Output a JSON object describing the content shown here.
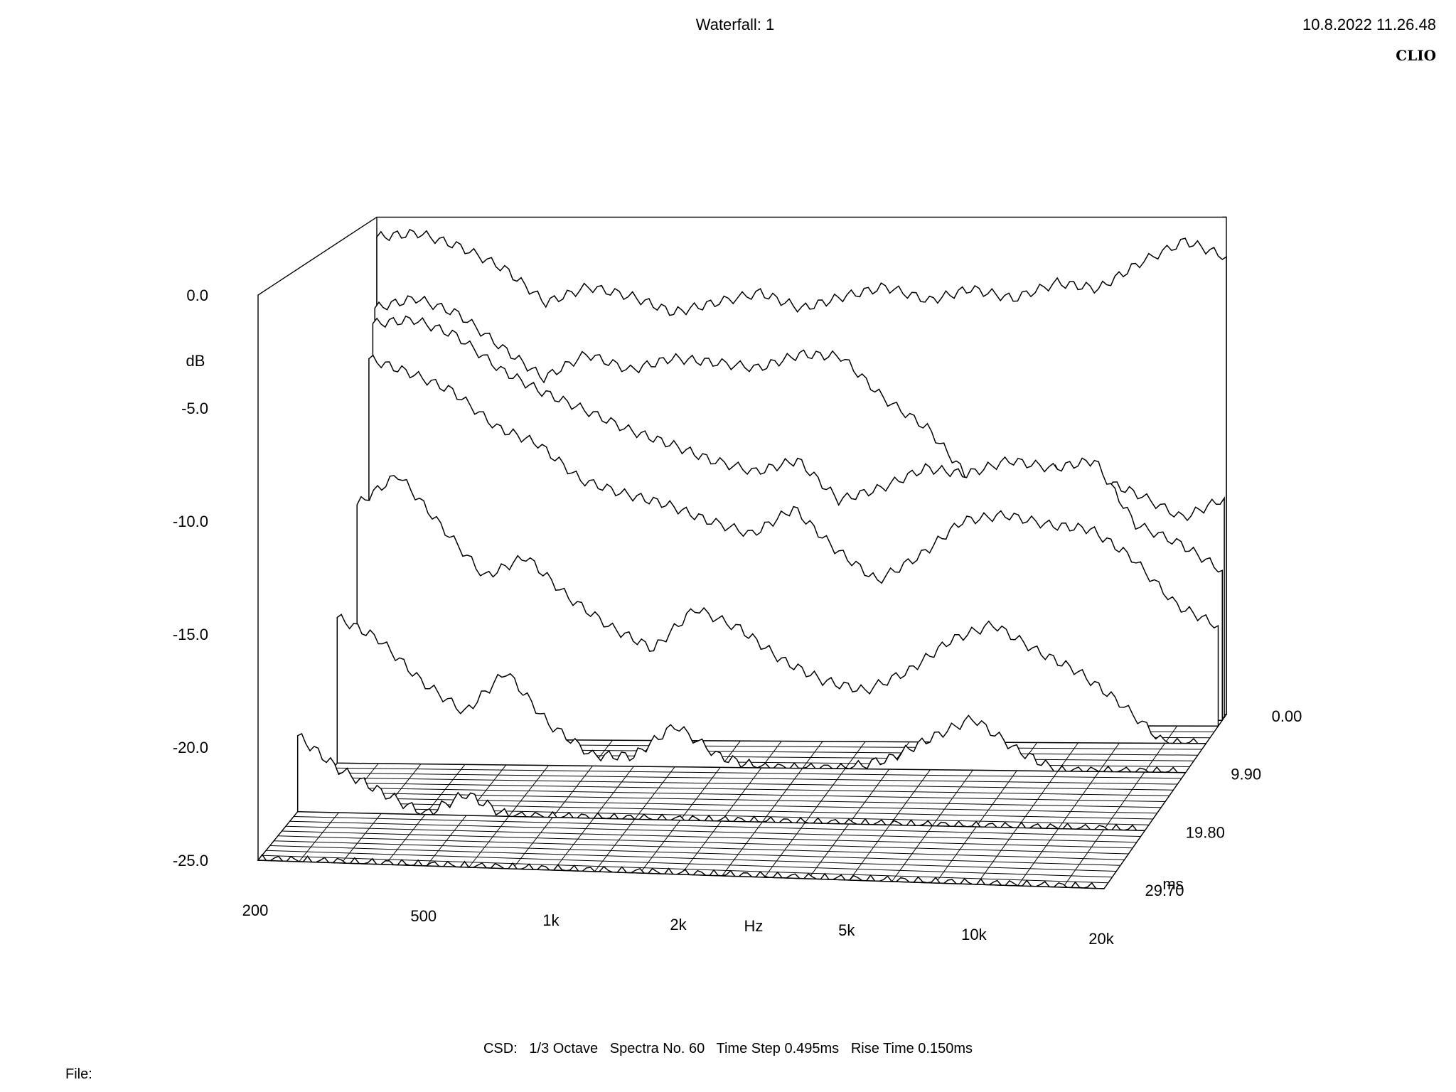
{
  "header": {
    "title": "Waterfall: 1",
    "datetime": "10.8.2022 11.26.48",
    "logo": "CLIO"
  },
  "footer": {
    "settings": "CSD:   1/3 Octave   Spectra No. 60   Time Step 0.495ms   Rise Time 0.150ms",
    "file_label": "File:"
  },
  "chart_data": {
    "type": "waterfall",
    "title": "Waterfall: 1",
    "xlabel": "Hz",
    "ylabel": "dB",
    "zlabel": "ms",
    "x_scale": "log",
    "xlim": [
      200,
      20000
    ],
    "ylim": [
      -25,
      0
    ],
    "zlim": [
      0,
      29.7
    ],
    "x_ticks": [
      {
        "value": 200,
        "label": "200"
      },
      {
        "value": 500,
        "label": "500"
      },
      {
        "value": 1000,
        "label": "1k"
      },
      {
        "value": 2000,
        "label": "2k"
      },
      {
        "value": 5000,
        "label": "5k"
      },
      {
        "value": 10000,
        "label": "10k"
      },
      {
        "value": 20000,
        "label": "20k"
      }
    ],
    "y_ticks": [
      {
        "value": 0,
        "label": "0.0"
      },
      {
        "value": -5,
        "label": "-5.0"
      },
      {
        "value": -10,
        "label": "-10.0"
      },
      {
        "value": -15,
        "label": "-15.0"
      },
      {
        "value": -20,
        "label": "-20.0"
      },
      {
        "value": -25,
        "label": "-25.0"
      }
    ],
    "z_ticks": [
      {
        "value": 0,
        "label": "0.00"
      },
      {
        "value": 9.9,
        "label": "9.90"
      },
      {
        "value": 19.8,
        "label": "19.80"
      },
      {
        "value": 29.7,
        "label": "29.70"
      }
    ],
    "spectra_count": 60,
    "time_step_ms": 0.495,
    "frequencies_hz": [
      200,
      250,
      315,
      400,
      500,
      630,
      800,
      1000,
      1250,
      1600,
      2000,
      2500,
      3150,
      4000,
      5000,
      6300,
      8000,
      10000,
      12500,
      16000,
      20000
    ],
    "slices": [
      {
        "time_ms": 0.0,
        "db": [
          -1.0,
          -0.8,
          -1.5,
          -2.6,
          -4.3,
          -3.5,
          -4.0,
          -4.8,
          -4.3,
          -3.8,
          -4.6,
          -4.0,
          -3.5,
          -4.2,
          -3.6,
          -4.1,
          -3.3,
          -3.6,
          -2.3,
          -1.2,
          -2.0
        ]
      },
      {
        "time_ms": 0.495,
        "db": [
          -4.5,
          -4.0,
          -4.8,
          -6.5,
          -8.0,
          -6.8,
          -7.6,
          -7.0,
          -7.2,
          -7.5,
          -6.8,
          -6.9,
          -9.0,
          -10.5,
          -13.0,
          -13.3,
          -12.6,
          -13.0,
          -13.8,
          -15.0,
          -14.0
        ]
      },
      {
        "time_ms": 0.99,
        "db": [
          -5.2,
          -5.0,
          -5.8,
          -7.5,
          -8.6,
          -9.5,
          -10.5,
          -11.2,
          -12.0,
          -12.6,
          -12.0,
          -14.0,
          -13.4,
          -12.4,
          -12.7,
          -12.0,
          -12.4,
          -12.0,
          -15.2,
          -16.2,
          -17.5
        ]
      },
      {
        "time_ms": 1.98,
        "db": [
          -6.8,
          -7.5,
          -8.4,
          -10.2,
          -11.0,
          -12.8,
          -13.5,
          -14.0,
          -14.8,
          -15.5,
          -14.2,
          -16.2,
          -17.8,
          -16.5,
          -14.8,
          -14.5,
          -15.0,
          -15.2,
          -16.6,
          -19.0,
          -20.0
        ]
      },
      {
        "time_ms": 4.95,
        "db": [
          -13.5,
          -12.0,
          -14.5,
          -17.0,
          -16.0,
          -18.0,
          -19.5,
          -20.5,
          -18.5,
          -19.5,
          -21.0,
          -22.0,
          -22.5,
          -21.5,
          -20.0,
          -19.2,
          -20.5,
          -21.5,
          -23.0,
          -25.0,
          -25.0
        ]
      },
      {
        "time_ms": 9.9,
        "db": [
          -18.0,
          -19.0,
          -21.0,
          -22.5,
          -20.5,
          -23.0,
          -24.5,
          -24.5,
          -23.0,
          -24.5,
          -25.0,
          -25.0,
          -25.0,
          -24.5,
          -23.5,
          -22.5,
          -24.0,
          -25.0,
          -25.0,
          -25.0,
          -25.0
        ]
      },
      {
        "time_ms": 19.8,
        "db": [
          -21.5,
          -23.0,
          -24.0,
          -25.0,
          -24.0,
          -25.0,
          -25.0,
          -25.0,
          -25.0,
          -25.0,
          -25.0,
          -25.0,
          -25.0,
          -25.0,
          -25.0,
          -25.0,
          -25.0,
          -25.0,
          -25.0,
          -25.0,
          -25.0
        ]
      },
      {
        "time_ms": 29.7,
        "db": [
          -25.0,
          -25.0,
          -25.0,
          -25.0,
          -25.0,
          -25.0,
          -25.0,
          -25.0,
          -25.0,
          -25.0,
          -25.0,
          -25.0,
          -25.0,
          -25.0,
          -25.0,
          -25.0,
          -25.0,
          -25.0,
          -25.0,
          -25.0,
          -25.0
        ]
      }
    ]
  }
}
